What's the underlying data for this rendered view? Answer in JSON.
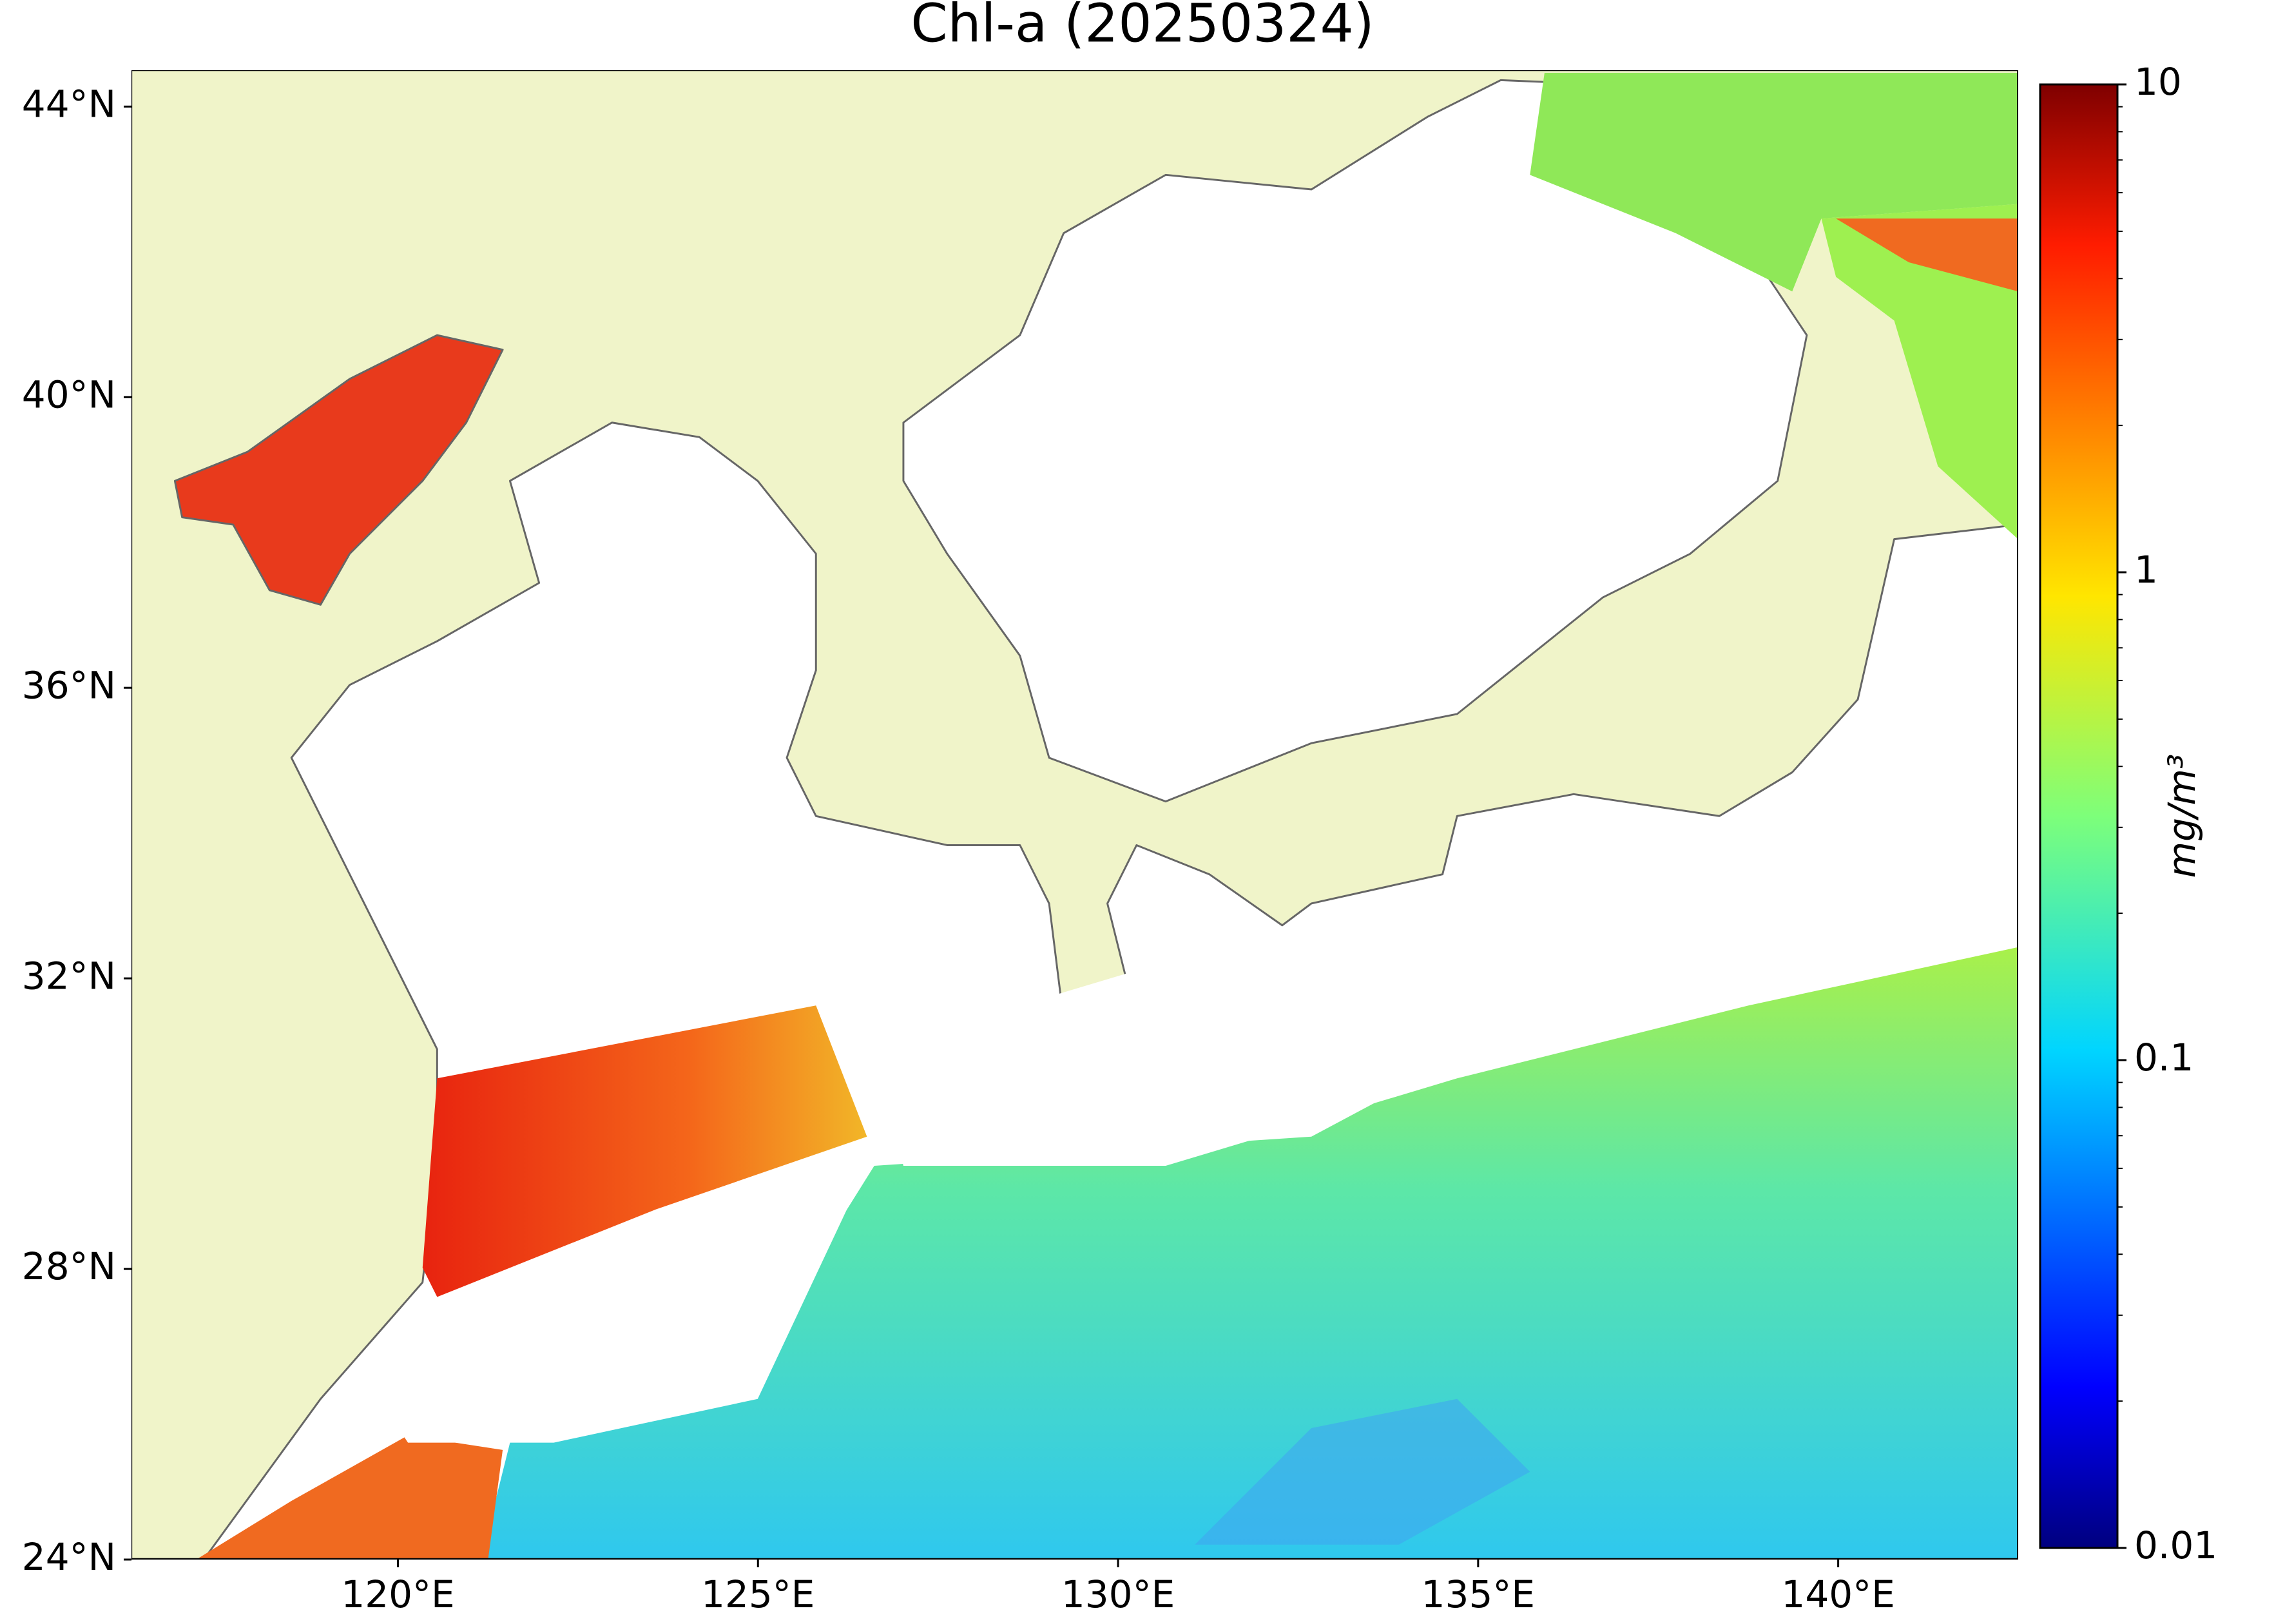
{
  "title": "Chl-a (20250324)",
  "map": {
    "xlim": [
      116.3,
      142.5
    ],
    "ylim": [
      24,
      44.5
    ],
    "xticks": [
      {
        "value": 120,
        "label": "120°E"
      },
      {
        "value": 125,
        "label": "125°E"
      },
      {
        "value": 130,
        "label": "130°E"
      },
      {
        "value": 135,
        "label": "135°E"
      },
      {
        "value": 140,
        "label": "140°E"
      }
    ],
    "yticks": [
      {
        "value": 24,
        "label": "24°N"
      },
      {
        "value": 28,
        "label": "28°N"
      },
      {
        "value": 32,
        "label": "32°N"
      },
      {
        "value": 36,
        "label": "36°N"
      },
      {
        "value": 40,
        "label": "40°N"
      },
      {
        "value": 44,
        "label": "44°N"
      }
    ]
  },
  "colorbar": {
    "label": "mg/m³",
    "scale": "log",
    "colormap": "jet",
    "lim": [
      0.01,
      10
    ],
    "ticks": [
      0.01,
      0.1,
      1,
      10
    ]
  }
}
